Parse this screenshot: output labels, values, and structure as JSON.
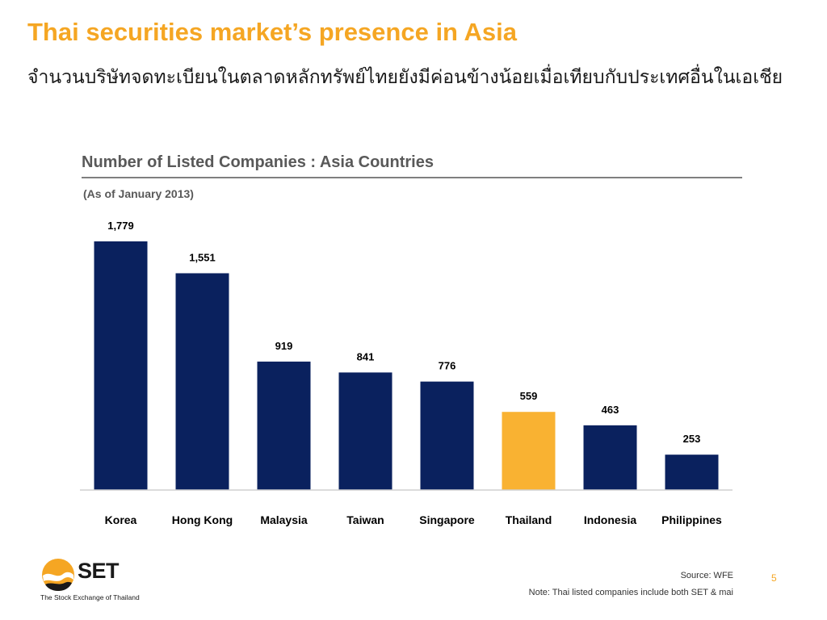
{
  "slide": {
    "title": "Thai securities market’s presence in Asia",
    "subtitle": "จำนวนบริษัทจดทะเบียนในตลาดหลักทรัพย์ไทยยังมีค่อนข้างน้อยเมื่อเทียบกับประเทศอื่นในเอเชีย",
    "page_number": "5"
  },
  "chart_data": {
    "type": "bar",
    "title": "Number of Listed Companies : Asia Countries",
    "subtitle": "(As of January 2013)",
    "categories": [
      "Korea",
      "Hong Kong",
      "Malaysia",
      "Taiwan",
      "Singapore",
      "Thailand",
      "Indonesia",
      "Philippines"
    ],
    "values": [
      1779,
      1551,
      919,
      841,
      776,
      559,
      463,
      253
    ],
    "data_labels": [
      "1,779",
      "1,551",
      "919",
      "841",
      "776",
      "559",
      "463",
      "253"
    ],
    "ylim": [
      0,
      1779
    ],
    "grid": false,
    "legend": "none",
    "colors": {
      "default": "#0A215E",
      "highlight": "#F9B232",
      "highlight_category": "Thailand"
    }
  },
  "footer": {
    "source": "Source: WFE",
    "note": "Note: Thai listed companies include both SET & mai"
  },
  "logo": {
    "text": "SET",
    "tagline": "The Stock Exchange of Thailand",
    "colors": {
      "orange": "#F5A623",
      "dark": "#1a1a1a"
    }
  }
}
